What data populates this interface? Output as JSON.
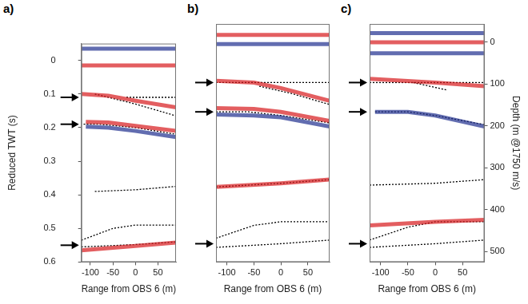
{
  "chart_data": [
    {
      "type": "line",
      "title": "a)",
      "x_label": "Range from OBS 6 (m)",
      "y_label": "Reduced TWT (s)",
      "xlim": [
        -120,
        90
      ],
      "xticks": [
        -100,
        -50,
        0,
        50
      ],
      "ylim": [
        -0.05,
        0.6
      ],
      "yticks": [
        0,
        0.1,
        0.2,
        0.3,
        0.4,
        0.5,
        0.6
      ],
      "arrows": [
        0.11,
        0.19,
        0.55
      ],
      "series": [
        {
          "color": "#1f2f8f",
          "line_style": "solid",
          "x": [
            -120,
            90
          ],
          "values": [
            -0.035,
            -0.035
          ]
        },
        {
          "color": "#d7191c",
          "line_style": "solid",
          "x": [
            -120,
            90
          ],
          "values": [
            0.015,
            0.015
          ]
        },
        {
          "color": "#d7191c",
          "line_style": "solid",
          "x": [
            -120,
            -60,
            0,
            90
          ],
          "values": [
            0.1,
            0.105,
            0.12,
            0.14
          ]
        },
        {
          "color": "#d7191c",
          "line_style": "solid",
          "x": [
            -110,
            -60,
            0,
            90
          ],
          "values": [
            0.183,
            0.185,
            0.195,
            0.21
          ]
        },
        {
          "color": "#1f2f8f",
          "line_style": "solid",
          "x": [
            -110,
            -60,
            0,
            90
          ],
          "values": [
            0.197,
            0.2,
            0.21,
            0.228
          ]
        },
        {
          "color": "#d7191c",
          "line_style": "solid",
          "x": [
            -120,
            0,
            90
          ],
          "values": [
            0.565,
            0.552,
            0.542
          ]
        },
        {
          "color": "#000000",
          "line_style": "dotted",
          "x": [
            -20,
            90
          ],
          "values": [
            0.11,
            0.11
          ]
        },
        {
          "color": "#000000",
          "line_style": "dotted",
          "x": [
            -90,
            0,
            90
          ],
          "values": [
            0.1,
            0.13,
            0.165
          ]
        },
        {
          "color": "#000000",
          "line_style": "dotted",
          "x": [
            -115,
            -80,
            0,
            90
          ],
          "values": [
            0.19,
            0.19,
            0.2,
            0.22
          ]
        },
        {
          "color": "#000000",
          "line_style": "dotted",
          "x": [
            -90,
            0,
            90
          ],
          "values": [
            0.39,
            0.385,
            0.375
          ]
        },
        {
          "color": "#000000",
          "line_style": "dotted",
          "x": [
            -120,
            -50,
            0,
            90
          ],
          "values": [
            0.535,
            0.5,
            0.49,
            0.49
          ]
        },
        {
          "color": "#000000",
          "line_style": "dotted",
          "x": [
            -120,
            0,
            90
          ],
          "values": [
            0.555,
            0.548,
            0.54
          ]
        }
      ]
    },
    {
      "type": "line",
      "title": "b)",
      "x_label": "Range from OBS 6 (m)",
      "xlim": [
        -120,
        90
      ],
      "xticks": [
        -100,
        -50,
        0,
        50
      ],
      "ylim": [
        -0.05,
        0.6
      ],
      "arrows": [
        0.11,
        0.19,
        0.55
      ],
      "series": [
        {
          "color": "#d7191c",
          "line_style": "solid",
          "x": [
            -120,
            90
          ],
          "values": [
            -0.02,
            -0.02
          ]
        },
        {
          "color": "#1f2f8f",
          "line_style": "solid",
          "x": [
            -120,
            90
          ],
          "values": [
            0.005,
            0.005
          ]
        },
        {
          "color": "#d7191c",
          "line_style": "solid",
          "x": [
            -120,
            -50,
            0,
            90
          ],
          "values": [
            0.105,
            0.11,
            0.125,
            0.16
          ]
        },
        {
          "color": "#d7191c",
          "line_style": "solid",
          "x": [
            -120,
            -50,
            0,
            90
          ],
          "values": [
            0.18,
            0.182,
            0.19,
            0.215
          ]
        },
        {
          "color": "#1f2f8f",
          "line_style": "solid",
          "x": [
            -120,
            -50,
            0,
            90
          ],
          "values": [
            0.197,
            0.2,
            0.205,
            0.23
          ]
        },
        {
          "color": "#d7191c",
          "line_style": "solid",
          "x": [
            -120,
            0,
            90
          ],
          "values": [
            0.395,
            0.385,
            0.375
          ]
        },
        {
          "color": "#000000",
          "line_style": "dotted",
          "x": [
            -120,
            90
          ],
          "values": [
            0.11,
            0.11
          ]
        },
        {
          "color": "#000000",
          "line_style": "dotted",
          "x": [
            -40,
            20,
            90
          ],
          "values": [
            0.12,
            0.14,
            0.17
          ]
        },
        {
          "color": "#000000",
          "line_style": "dotted",
          "x": [
            -120,
            -60,
            0,
            90
          ],
          "values": [
            0.19,
            0.19,
            0.2,
            0.22
          ]
        },
        {
          "color": "#000000",
          "line_style": "dotted",
          "x": [
            -120,
            0,
            90
          ],
          "values": [
            0.395,
            0.385,
            0.375
          ]
        },
        {
          "color": "#000000",
          "line_style": "dotted",
          "x": [
            -120,
            -50,
            0,
            90
          ],
          "values": [
            0.535,
            0.5,
            0.49,
            0.49
          ]
        },
        {
          "color": "#000000",
          "line_style": "dotted",
          "x": [
            -120,
            0,
            90
          ],
          "values": [
            0.56,
            0.55,
            0.54
          ]
        }
      ]
    },
    {
      "type": "line",
      "title": "c)",
      "x_label": "Range from OBS 6 (m)",
      "y2_label": "Depth (m @1750 m/s)",
      "xlim": [
        -120,
        90
      ],
      "xticks": [
        -100,
        -50,
        0,
        50
      ],
      "ylim": [
        -0.05,
        0.6
      ],
      "y2lim": [
        -43.75,
        525
      ],
      "y2ticks": [
        0,
        100,
        200,
        300,
        400,
        500
      ],
      "arrows": [
        0.11,
        0.19,
        0.55
      ],
      "series": [
        {
          "color": "#1f2f8f",
          "line_style": "solid",
          "x": [
            -120,
            90
          ],
          "values": [
            -0.025,
            -0.025
          ]
        },
        {
          "color": "#d7191c",
          "line_style": "solid",
          "x": [
            -120,
            90
          ],
          "values": [
            0.0,
            0.0
          ]
        },
        {
          "color": "#1f2f8f",
          "line_style": "solid",
          "x": [
            -120,
            90
          ],
          "values": [
            0.03,
            0.03
          ]
        },
        {
          "color": "#d7191c",
          "line_style": "solid",
          "x": [
            -120,
            0,
            90
          ],
          "values": [
            0.1,
            0.11,
            0.12
          ]
        },
        {
          "color": "#1f2f8f",
          "line_style": "solid",
          "x": [
            -110,
            -50,
            0,
            90
          ],
          "values": [
            0.19,
            0.19,
            0.2,
            0.23
          ]
        },
        {
          "color": "#d7191c",
          "line_style": "solid",
          "x": [
            -120,
            0,
            90
          ],
          "values": [
            0.5,
            0.49,
            0.485
          ]
        },
        {
          "color": "#000000",
          "line_style": "dotted",
          "x": [
            -120,
            90
          ],
          "values": [
            0.11,
            0.11
          ]
        },
        {
          "color": "#000000",
          "line_style": "dotted",
          "x": [
            -40,
            20
          ],
          "values": [
            0.11,
            0.13
          ]
        },
        {
          "color": "#000000",
          "line_style": "dotted",
          "x": [
            -110,
            -50,
            0,
            90
          ],
          "values": [
            0.19,
            0.19,
            0.2,
            0.225
          ]
        },
        {
          "color": "#000000",
          "line_style": "dotted",
          "x": [
            -120,
            0,
            90
          ],
          "values": [
            0.39,
            0.385,
            0.375
          ]
        },
        {
          "color": "#000000",
          "line_style": "dotted",
          "x": [
            -120,
            -50,
            0,
            90
          ],
          "values": [
            0.54,
            0.505,
            0.49,
            0.49
          ]
        },
        {
          "color": "#000000",
          "line_style": "dotted",
          "x": [
            -120,
            0,
            90
          ],
          "values": [
            0.56,
            0.55,
            0.54
          ]
        }
      ]
    }
  ]
}
